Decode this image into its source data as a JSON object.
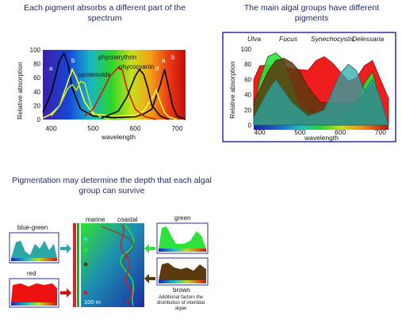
{
  "titles": {
    "spectrum": "Each pigment absorbs a different part of the spectrum",
    "algal_groups": "The main algal groups have different pigments",
    "depth": "Pigmentation may determine the depth that each algal group can survive"
  },
  "chart_data": [
    {
      "type": "line",
      "title": "Each pigment absorbs a different part of the spectrum",
      "xlabel": "wavelength",
      "ylabel": "Relative absorption",
      "xlim": [
        380,
        720
      ],
      "ylim": [
        0,
        100
      ],
      "xticks": [
        400,
        500,
        600,
        700
      ],
      "yticks": [
        0,
        20,
        40,
        60,
        80,
        100
      ],
      "legend": "inline labels",
      "colors": {
        "chlorophyll_a": "#000000",
        "chlorophyll_b": "#ffff33",
        "carotenoids": "#b8e62e",
        "phycoerythrin": "#d01818",
        "phycocyanin": "#000000"
      },
      "series": [
        {
          "name": "a",
          "x": [
            380,
            400,
            420,
            430,
            440,
            450,
            470,
            500,
            550,
            600,
            620,
            640,
            660,
            670,
            680,
            690,
            700,
            720
          ],
          "y": [
            10,
            38,
            85,
            95,
            80,
            45,
            15,
            5,
            3,
            4,
            8,
            15,
            50,
            72,
            45,
            18,
            5,
            0
          ]
        },
        {
          "name": "b",
          "x": [
            380,
            400,
            420,
            440,
            450,
            460,
            480,
            500,
            550,
            600,
            620,
            640,
            650,
            660,
            670,
            680,
            700
          ],
          "y": [
            2,
            8,
            20,
            55,
            72,
            60,
            25,
            8,
            5,
            6,
            12,
            30,
            42,
            25,
            10,
            4,
            0
          ]
        },
        {
          "name": "carotenoids",
          "x": [
            400,
            420,
            440,
            450,
            460,
            470,
            480,
            490,
            500,
            520,
            540
          ],
          "y": [
            5,
            20,
            45,
            50,
            42,
            55,
            52,
            30,
            10,
            3,
            0
          ]
        },
        {
          "name": "phycoerythrin",
          "x": [
            480,
            500,
            520,
            540,
            560,
            570,
            580,
            600,
            620,
            650
          ],
          "y": [
            5,
            15,
            38,
            62,
            75,
            70,
            45,
            15,
            5,
            0
          ]
        },
        {
          "name": "phycocyanin",
          "x": [
            520,
            560,
            580,
            600,
            610,
            620,
            630,
            640,
            660,
            680
          ],
          "y": [
            2,
            12,
            32,
            62,
            72,
            65,
            45,
            20,
            5,
            0
          ]
        }
      ],
      "annotations": [
        "phycoerythrin",
        "phycocyanin",
        "carotenoids",
        "a",
        "b",
        "a",
        "b",
        "d"
      ]
    },
    {
      "type": "area",
      "title": "The main algal groups have different pigments",
      "xlabel": "wavelength",
      "ylabel": "Relative absorption",
      "xlim": [
        385,
        720
      ],
      "ylim": [
        0,
        100
      ],
      "xticks": [
        400,
        500,
        600,
        700
      ],
      "yticks": [
        0,
        20,
        40,
        60,
        80,
        100
      ],
      "legend": "inline labels",
      "colors": {
        "Ulva": "#2ee23c",
        "Fucus": "#5c3a10",
        "Synechocystis": "#2aa8a8",
        "Delessaria": "#ee1111"
      },
      "series": [
        {
          "name": "Ulva",
          "x": [
            385,
            400,
            420,
            440,
            460,
            480,
            500,
            550,
            600,
            640,
            660,
            680,
            700,
            720
          ],
          "y": [
            20,
            60,
            90,
            95,
            85,
            55,
            25,
            10,
            12,
            25,
            55,
            70,
            30,
            0
          ]
        },
        {
          "name": "Fucus",
          "x": [
            385,
            420,
            440,
            460,
            480,
            500,
            520,
            550,
            600,
            640,
            680,
            700,
            720
          ],
          "y": [
            30,
            70,
            85,
            88,
            82,
            70,
            50,
            30,
            28,
            30,
            55,
            30,
            0
          ]
        },
        {
          "name": "Synechocystis",
          "x": [
            385,
            420,
            440,
            480,
            520,
            560,
            600,
            620,
            640,
            660,
            680,
            700,
            720
          ],
          "y": [
            10,
            45,
            60,
            30,
            12,
            20,
            68,
            80,
            72,
            45,
            60,
            35,
            0
          ]
        },
        {
          "name": "Delessaria",
          "x": [
            385,
            400,
            440,
            480,
            520,
            540,
            560,
            580,
            600,
            620,
            640,
            660,
            680,
            700,
            720
          ],
          "y": [
            60,
            78,
            80,
            74,
            72,
            85,
            90,
            82,
            70,
            58,
            62,
            78,
            85,
            60,
            35
          ]
        }
      ],
      "annotations": [
        "Ulva",
        "Fucus",
        "Synechocystis",
        "Delessaria"
      ]
    }
  ],
  "depth": {
    "left_labels": [
      "blue-green",
      "red"
    ],
    "right_labels": [
      "green",
      "brown"
    ],
    "column_labels": [
      "marine",
      "coastal"
    ],
    "depth_label": "100 m",
    "note": "Additional factors the distribution of intertidal algae"
  }
}
